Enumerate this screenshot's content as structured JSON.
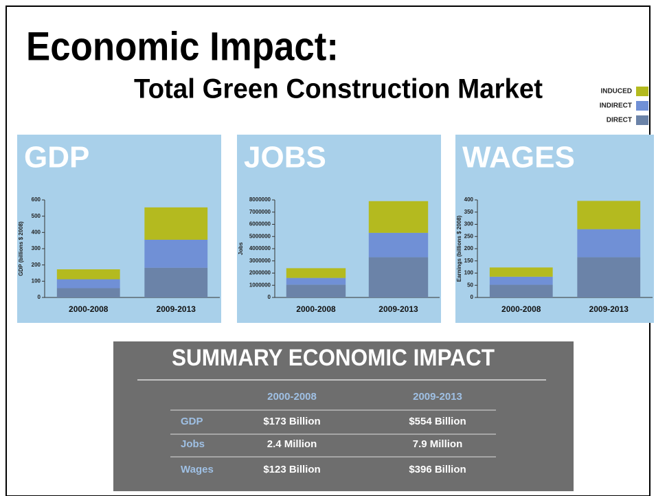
{
  "title": "Economic Impact:",
  "subtitle": "Total Green Construction Market",
  "legend": [
    {
      "name": "DIRECT",
      "color": "#6b83a8"
    },
    {
      "name": "INDIRECT",
      "color": "#7090d6"
    },
    {
      "name": "INDUCED",
      "color": "#b4ba1f"
    }
  ],
  "chart_data": [
    {
      "type": "bar",
      "stacked": true,
      "title": "GDP",
      "y_label": "GDP (billions $ 2008)",
      "categories": [
        "2000-2008",
        "2009-2013"
      ],
      "series": [
        {
          "values": [
            57,
            183
          ]
        },
        {
          "values": [
            55,
            172
          ]
        },
        {
          "values": [
            61,
            199
          ]
        }
      ],
      "ylim": [
        0,
        600
      ],
      "yticks": [
        0,
        100,
        200,
        300,
        400,
        500,
        600
      ]
    },
    {
      "type": "bar",
      "stacked": true,
      "title": "JOBS",
      "y_label": "Jobs",
      "categories": [
        "2000-2008",
        "2009-2013"
      ],
      "series": [
        {
          "values": [
            1050000,
            3300000
          ]
        },
        {
          "values": [
            550000,
            2000000
          ]
        },
        {
          "values": [
            800000,
            2600000
          ]
        }
      ],
      "ylim": [
        0,
        8000000
      ],
      "yticks": [
        0,
        1000000,
        2000000,
        3000000,
        4000000,
        5000000,
        6000000,
        7000000,
        8000000
      ]
    },
    {
      "type": "bar",
      "stacked": true,
      "title": "WAGES",
      "y_label": "Earnings (billions $ 2008)",
      "categories": [
        "2000-2008",
        "2009-2013"
      ],
      "series": [
        {
          "values": [
            52,
            165
          ]
        },
        {
          "values": [
            33,
            115
          ]
        },
        {
          "values": [
            38,
            116
          ]
        }
      ],
      "ylim": [
        0,
        400
      ],
      "yticks": [
        0,
        50,
        100,
        150,
        200,
        250,
        300,
        350,
        400
      ]
    }
  ],
  "table": {
    "title": "SUMMARY ECONOMIC IMPACT",
    "columns": [
      "2000-2008",
      "2009-2013"
    ],
    "rows": [
      [
        "GDP",
        "$173 Billion",
        "$554 Billion"
      ],
      [
        "Jobs",
        "2.4 Million",
        "7.9 Million"
      ],
      [
        "Wages",
        "$123 Billion",
        "$396 Billion"
      ]
    ]
  }
}
